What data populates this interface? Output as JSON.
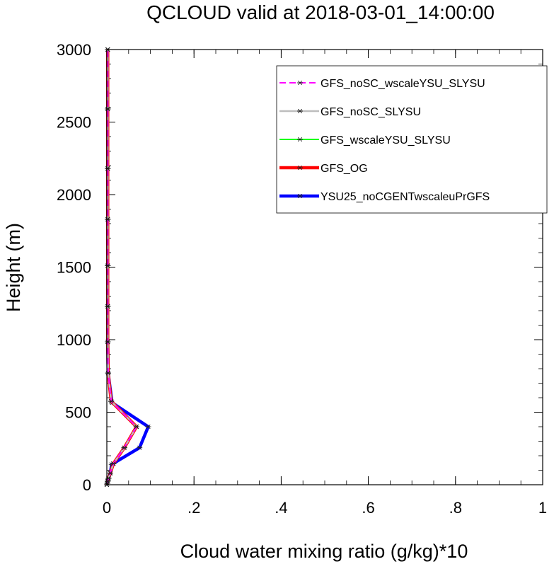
{
  "chart_data": {
    "type": "line",
    "title": "QCLOUD valid at 2018-03-01_14:00:00",
    "xlabel": "Cloud water mixing ratio (g/kg)*10",
    "ylabel": "Height (m)",
    "xlim": [
      0,
      1
    ],
    "ylim": [
      0,
      3000
    ],
    "x_ticks": [
      0,
      0.2,
      0.4,
      0.6,
      0.8,
      1.0
    ],
    "x_tick_labels": [
      "0",
      ".2",
      ".4",
      ".6",
      ".8",
      "1"
    ],
    "y_ticks": [
      0,
      500,
      1000,
      1500,
      2000,
      2500,
      3000
    ],
    "y_tick_labels": [
      "0",
      "500",
      "1000",
      "1500",
      "2000",
      "2500",
      "3000"
    ],
    "grid": false,
    "legend_position": "top-right",
    "marker": "asterisk",
    "series": [
      {
        "name": "GFS_noSC_wscaleYSU_SLYSU",
        "color": "#ff00ff",
        "dash": "dashed",
        "width": "thin",
        "points": [
          [
            0.0,
            0
          ],
          [
            0.001,
            10
          ],
          [
            0.002,
            25
          ],
          [
            0.004,
            45
          ],
          [
            0.008,
            80
          ],
          [
            0.015,
            145
          ],
          [
            0.04,
            255
          ],
          [
            0.068,
            400
          ],
          [
            0.01,
            575
          ],
          [
            0.003,
            770
          ],
          [
            0.002,
            985
          ],
          [
            0.002,
            1230
          ],
          [
            0.002,
            1510
          ],
          [
            0.002,
            1830
          ],
          [
            0.002,
            2180
          ],
          [
            0.002,
            2590
          ],
          [
            0.002,
            3000
          ]
        ]
      },
      {
        "name": "GFS_noSC_SLYSU",
        "color": "#bdbdbd",
        "dash": "solid",
        "width": "medium",
        "points": [
          [
            0.0,
            0
          ],
          [
            0.001,
            10
          ],
          [
            0.002,
            25
          ],
          [
            0.004,
            45
          ],
          [
            0.008,
            80
          ],
          [
            0.015,
            145
          ],
          [
            0.04,
            255
          ],
          [
            0.068,
            400
          ],
          [
            0.01,
            575
          ],
          [
            0.003,
            770
          ],
          [
            0.002,
            985
          ],
          [
            0.002,
            1230
          ],
          [
            0.002,
            1510
          ],
          [
            0.002,
            1830
          ],
          [
            0.002,
            2180
          ],
          [
            0.002,
            2590
          ],
          [
            0.002,
            3000
          ]
        ]
      },
      {
        "name": "GFS_wscaleYSU_SLYSU",
        "color": "#00ff00",
        "dash": "solid",
        "width": "thin",
        "points": [
          [
            0.0,
            0
          ],
          [
            0.001,
            10
          ],
          [
            0.002,
            25
          ],
          [
            0.004,
            45
          ],
          [
            0.008,
            80
          ],
          [
            0.015,
            145
          ],
          [
            0.04,
            255
          ],
          [
            0.068,
            400
          ],
          [
            0.01,
            575
          ],
          [
            0.003,
            770
          ],
          [
            0.002,
            985
          ],
          [
            0.002,
            1230
          ],
          [
            0.002,
            1510
          ],
          [
            0.002,
            1830
          ],
          [
            0.002,
            2180
          ],
          [
            0.002,
            2590
          ],
          [
            0.002,
            3000
          ]
        ]
      },
      {
        "name": "GFS_OG",
        "color": "#ff0000",
        "dash": "solid",
        "width": "thick",
        "points": [
          [
            0.0,
            0
          ],
          [
            0.001,
            10
          ],
          [
            0.002,
            25
          ],
          [
            0.004,
            45
          ],
          [
            0.008,
            80
          ],
          [
            0.015,
            145
          ],
          [
            0.04,
            255
          ],
          [
            0.068,
            400
          ],
          [
            0.01,
            575
          ],
          [
            0.003,
            770
          ],
          [
            0.002,
            985
          ],
          [
            0.002,
            1230
          ],
          [
            0.002,
            1510
          ],
          [
            0.002,
            1830
          ],
          [
            0.002,
            2180
          ],
          [
            0.002,
            2590
          ],
          [
            0.002,
            3000
          ]
        ]
      },
      {
        "name": "YSU25_noCGENTwscaleuPrGFS",
        "color": "#0000ff",
        "dash": "solid",
        "width": "thick",
        "points": [
          [
            0.0,
            0
          ],
          [
            0.001,
            10
          ],
          [
            0.002,
            25
          ],
          [
            0.004,
            45
          ],
          [
            0.008,
            80
          ],
          [
            0.011,
            140
          ],
          [
            0.075,
            255
          ],
          [
            0.095,
            400
          ],
          [
            0.012,
            565
          ],
          [
            0.003,
            770
          ],
          [
            0.002,
            985
          ],
          [
            0.002,
            1230
          ],
          [
            0.002,
            1510
          ],
          [
            0.002,
            1830
          ],
          [
            0.002,
            2180
          ],
          [
            0.002,
            2590
          ],
          [
            0.002,
            3000
          ]
        ]
      }
    ]
  }
}
